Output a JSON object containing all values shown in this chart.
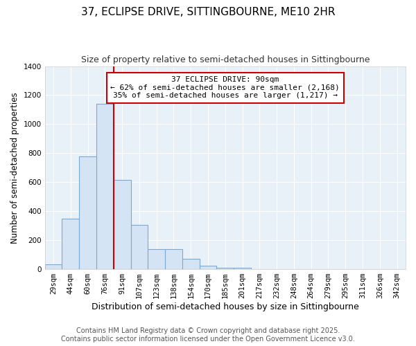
{
  "title": "37, ECLIPSE DRIVE, SITTINGBOURNE, ME10 2HR",
  "subtitle": "Size of property relative to semi-detached houses in Sittingbourne",
  "xlabel": "Distribution of semi-detached houses by size in Sittingbourne",
  "ylabel": "Number of semi-detached properties",
  "categories": [
    "29sqm",
    "44sqm",
    "60sqm",
    "76sqm",
    "91sqm",
    "107sqm",
    "123sqm",
    "138sqm",
    "154sqm",
    "170sqm",
    "185sqm",
    "201sqm",
    "217sqm",
    "232sqm",
    "248sqm",
    "264sqm",
    "279sqm",
    "295sqm",
    "311sqm",
    "326sqm",
    "342sqm"
  ],
  "values": [
    35,
    350,
    780,
    1140,
    615,
    305,
    140,
    140,
    70,
    25,
    10,
    10,
    0,
    0,
    0,
    0,
    0,
    0,
    0,
    0,
    0
  ],
  "bar_color": "#d4e4f4",
  "bar_edge_color": "#7aaad4",
  "vline_color": "#cc0000",
  "annotation_title": "37 ECLIPSE DRIVE: 90sqm",
  "annotation_line1": "← 62% of semi-detached houses are smaller (2,168)",
  "annotation_line2": "35% of semi-detached houses are larger (1,217) →",
  "annotation_box_color": "#cc0000",
  "ylim": [
    0,
    1400
  ],
  "yticks": [
    0,
    200,
    400,
    600,
    800,
    1000,
    1200,
    1400
  ],
  "background_color": "#ffffff",
  "plot_bg_color": "#e8f0f8",
  "grid_color": "#ffffff",
  "footer_line1": "Contains HM Land Registry data © Crown copyright and database right 2025.",
  "footer_line2": "Contains public sector information licensed under the Open Government Licence v3.0.",
  "title_fontsize": 11,
  "subtitle_fontsize": 9,
  "xlabel_fontsize": 9,
  "ylabel_fontsize": 8.5,
  "tick_fontsize": 7.5,
  "ann_fontsize": 8,
  "footer_fontsize": 7
}
